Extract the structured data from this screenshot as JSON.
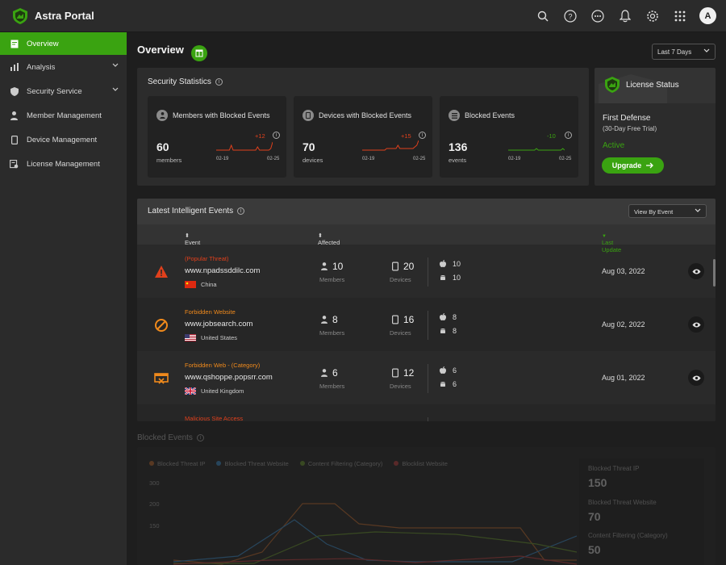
{
  "app": {
    "title": "Astra Portal",
    "avatar_initial": "A"
  },
  "topbar": {
    "icons": [
      "search-icon",
      "help-icon",
      "more-icon",
      "bell-icon",
      "gear-icon",
      "apps-grid-icon"
    ]
  },
  "sidebar": {
    "items": [
      {
        "label": "Overview",
        "icon": "overview-icon",
        "active": true
      },
      {
        "label": "Analysis",
        "icon": "bar-chart-icon",
        "expandable": true
      },
      {
        "label": "Security Service",
        "icon": "shield-icon",
        "expandable": true
      },
      {
        "label": "Member Management",
        "icon": "person-icon"
      },
      {
        "label": "Device Management",
        "icon": "phone-icon"
      },
      {
        "label": "License Management",
        "icon": "license-icon"
      }
    ]
  },
  "page": {
    "title": "Overview",
    "range": "Last 7 Days"
  },
  "stats": {
    "title": "Security Statistics",
    "cards": [
      {
        "title": "Members with Blocked Events",
        "value": "60",
        "unit": "members",
        "delta": "+12",
        "date_start": "02-19",
        "date_end": "02-25",
        "spark": [
          2,
          2,
          2,
          2,
          2,
          2,
          2,
          2,
          5,
          2,
          2,
          2,
          2,
          2,
          2,
          2,
          2,
          2,
          2,
          2,
          2,
          2,
          4,
          2,
          2,
          2,
          2,
          2,
          2,
          3,
          7
        ],
        "color": "#e0401c"
      },
      {
        "title": "Devices with Blocked Events",
        "value": "70",
        "unit": "devices",
        "delta": "+15",
        "date_start": "02-19",
        "date_end": "02-25",
        "spark": [
          2,
          2,
          2,
          2,
          2,
          2,
          2,
          2,
          2,
          2,
          2,
          2,
          2,
          3,
          3,
          3,
          3,
          3,
          3,
          5,
          3,
          3,
          3,
          3,
          3,
          3,
          3,
          3,
          4,
          5,
          8
        ],
        "color": "#e0401c"
      },
      {
        "title": "Blocked Events",
        "value": "136",
        "unit": "events",
        "delta": "-10",
        "date_start": "02-19",
        "date_end": "02-25",
        "spark": [
          2,
          2,
          2,
          2,
          2,
          2,
          2,
          2,
          2,
          2,
          2,
          2,
          2,
          2,
          2,
          3,
          2,
          2,
          2,
          2,
          2,
          2,
          2,
          2,
          2,
          2,
          2,
          2,
          2,
          3,
          2
        ],
        "color": "#3aa311"
      }
    ]
  },
  "license": {
    "title": "License Status",
    "plan": "First Defense",
    "trial": "(30-Day Free Trial)",
    "status": "Active",
    "upgrade_label": "Upgrade"
  },
  "events": {
    "title": "Latest Intelligent Events",
    "view_by": "View By Event",
    "columns": {
      "event": "Event",
      "affected": "Affected",
      "last_update": "Last Update"
    },
    "members_label": "Members",
    "devices_label": "Devices",
    "rows": [
      {
        "category": "(Popular Threat)",
        "category_color": "#e0401c",
        "domain": "www.npadssddilc.com",
        "country": "China",
        "flag": "cn",
        "icon": "warning-icon",
        "members": "10",
        "devices": "20",
        "apple": "10",
        "android": "10",
        "date": "Aug 03, 2022"
      },
      {
        "category": "Forbidden Website",
        "category_color": "#f08a1c",
        "domain": "www.jobsearch.com",
        "country": "United States",
        "flag": "us",
        "icon": "forbidden-icon",
        "members": "8",
        "devices": "16",
        "apple": "8",
        "android": "8",
        "date": "Aug 02, 2022"
      },
      {
        "category": "Forbidden Web - (Category)",
        "category_color": "#f08a1c",
        "domain": "www.qshoppe.popsrr.com",
        "country": "United Kingdom",
        "flag": "gb",
        "icon": "blocked-web-icon",
        "members": "6",
        "devices": "12",
        "apple": "6",
        "android": "6",
        "date": "Aug 01, 2022"
      },
      {
        "category": "Malicious Site Access",
        "category_color": "#e0401c"
      }
    ]
  },
  "blocked": {
    "title": "Blocked Events",
    "legend": [
      {
        "label": "Blocked Threat IP",
        "color": "#c46a2a"
      },
      {
        "label": "Blocked Threat Website",
        "color": "#3a8fd0"
      },
      {
        "label": "Content Filtering (Category)",
        "color": "#6a9a2a"
      },
      {
        "label": "Blocklist Website",
        "color": "#c84040"
      }
    ],
    "yticks": [
      "300",
      "200",
      "150"
    ],
    "summary": [
      {
        "label": "Blocked Threat IP",
        "value": "150"
      },
      {
        "label": "Blocked Threat Website",
        "value": "70"
      },
      {
        "label": "Content Filtering (Category)",
        "value": "50"
      }
    ]
  }
}
